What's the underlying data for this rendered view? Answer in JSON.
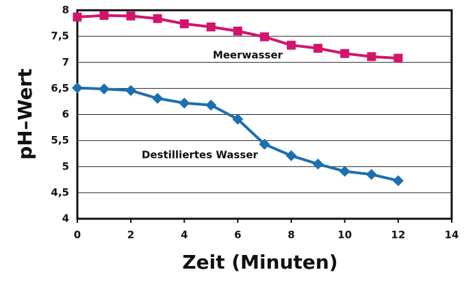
{
  "chart_data": {
    "type": "line",
    "x_label": "Zeit  (Minuten)",
    "y_label": "pH–Wert",
    "x": [
      0,
      1,
      2,
      3,
      4,
      5,
      6,
      7,
      8,
      9,
      10,
      11,
      12
    ],
    "series": [
      {
        "name": "Meerwasser",
        "color": "#d3146c",
        "marker": "square",
        "values": [
          7.87,
          7.9,
          7.89,
          7.84,
          7.74,
          7.68,
          7.6,
          7.49,
          7.33,
          7.27,
          7.17,
          7.11,
          7.08
        ]
      },
      {
        "name": "Destilliertes Wasser",
        "color": "#1b70b2",
        "marker": "diamond",
        "values": [
          6.51,
          6.49,
          6.46,
          6.31,
          6.22,
          6.18,
          5.91,
          5.43,
          5.21,
          5.05,
          4.91,
          4.85,
          4.73
        ]
      }
    ],
    "xlim": [
      0,
      14
    ],
    "xticks": [
      0,
      2,
      4,
      6,
      8,
      10,
      12,
      14
    ],
    "ylim": [
      4,
      8
    ],
    "yticks": [
      4,
      {
        "value": 4.5,
        "label": "4,5"
      },
      5,
      {
        "value": 5.5,
        "label": "5,5"
      },
      6,
      {
        "value": 6.5,
        "label": "6,5"
      },
      7,
      {
        "value": 7.5,
        "label": "7,5"
      },
      8
    ],
    "grid": true
  }
}
